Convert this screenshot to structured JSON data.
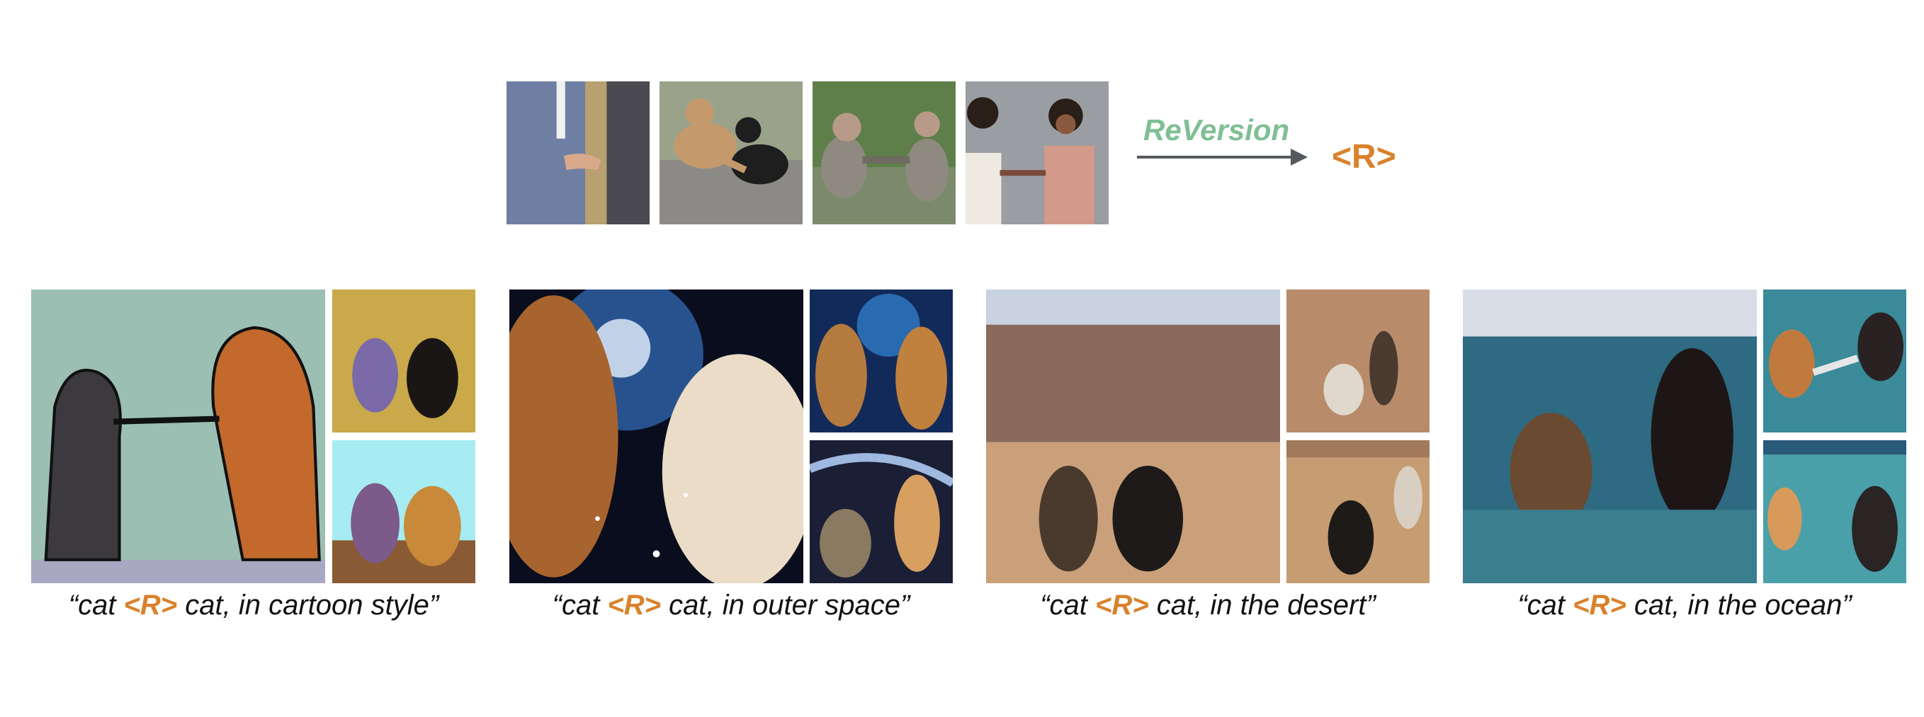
{
  "figure": {
    "method_label": "ReVersion",
    "relation_token": "<R>"
  },
  "examples": [
    {
      "tag": "handshake-businessmen"
    },
    {
      "tag": "handshake-dogs"
    },
    {
      "tag": "handshake-monkeys"
    },
    {
      "tag": "handshake-women"
    }
  ],
  "groups": [
    {
      "pre": "“cat ",
      "token": "<R>",
      "post": " cat, in cartoon style”"
    },
    {
      "pre": "“cat ",
      "token": "<R>",
      "post": " cat, in outer space”"
    },
    {
      "pre": "“cat ",
      "token": "<R>",
      "post": " cat, in the desert”"
    },
    {
      "pre": "“cat ",
      "token": "<R>",
      "post": " cat, in the ocean”"
    }
  ],
  "colors": {
    "method": "#7fbf95",
    "token": "#d9822b",
    "arrow": "#55595e"
  }
}
